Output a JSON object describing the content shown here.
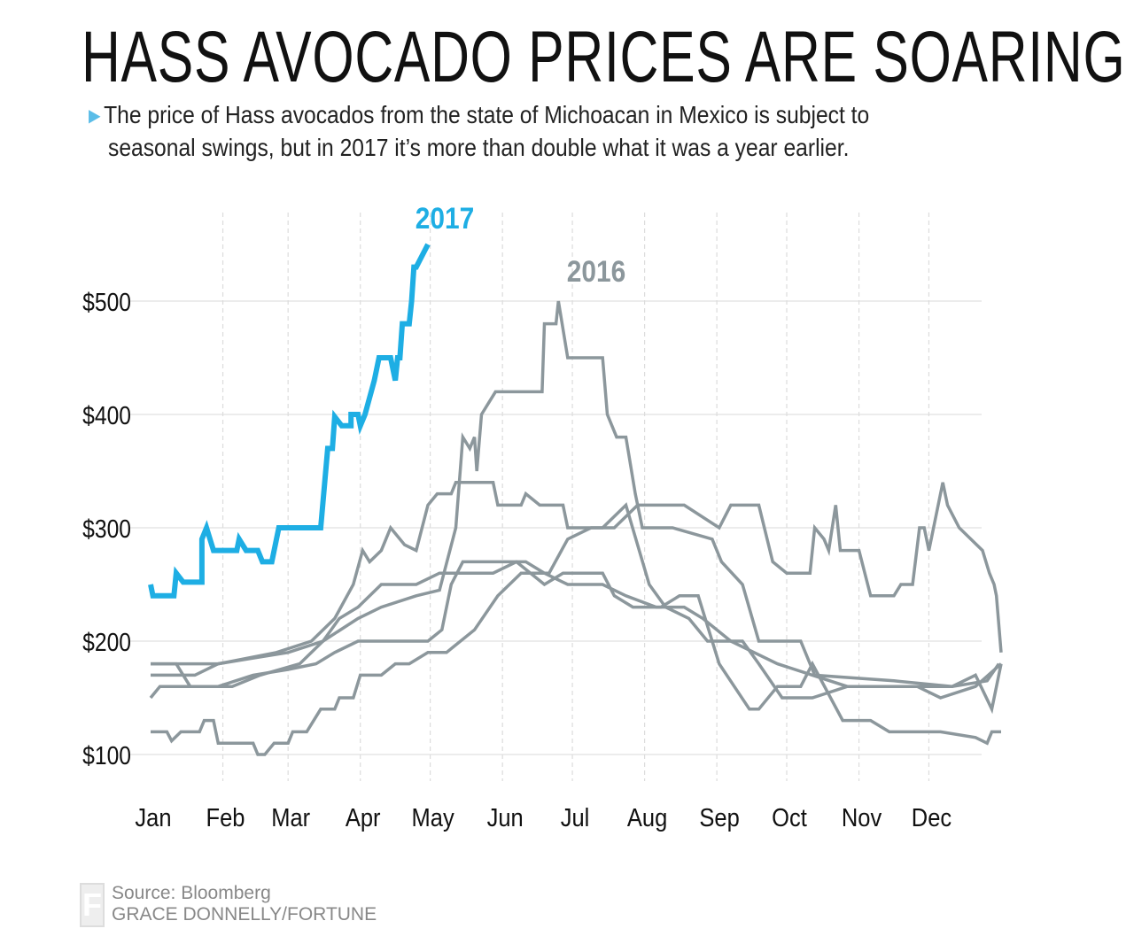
{
  "title": "HASS AVOCADO PRICES ARE SOARING",
  "subtitle": {
    "line1": "The price of Hass avocados from the state of Michoacan in Mexico is subject to",
    "line2": "seasonal swings, but in 2017 it’s more than double what it was a year earlier.",
    "bullet_icon": "triangle-right-icon"
  },
  "footer": {
    "source": "Source: Bloomberg",
    "credit": "GRACE DONNELLY/FORTUNE",
    "logo": "F"
  },
  "colors": {
    "highlight": "#1eaee4",
    "other_years": "#8c979c",
    "grid": "#e6e6e6"
  },
  "chart_data": {
    "type": "line",
    "title": "HASS AVOCADO PRICES ARE SOARING",
    "xlabel": "",
    "ylabel": "",
    "x_ticks": [
      "Jan",
      "Feb",
      "Mar",
      "Apr",
      "May",
      "Jun",
      "Jul",
      "Aug",
      "Sep",
      "Oct",
      "Nov",
      "Dec"
    ],
    "y_ticks": [
      "$100",
      "$200",
      "$300",
      "$400",
      "$500"
    ],
    "y_tick_values": [
      100,
      200,
      300,
      400,
      500
    ],
    "xlim": [
      1,
      366
    ],
    "ylim": [
      95,
      560
    ],
    "grid": true,
    "series": [
      {
        "name": "2017",
        "highlight": true,
        "points": [
          [
            1,
            250
          ],
          [
            2,
            240
          ],
          [
            11,
            240
          ],
          [
            12,
            260
          ],
          [
            15,
            252
          ],
          [
            23,
            252
          ],
          [
            23,
            290
          ],
          [
            25,
            300
          ],
          [
            28,
            280
          ],
          [
            38,
            280
          ],
          [
            39,
            290
          ],
          [
            42,
            280
          ],
          [
            47,
            280
          ],
          [
            49,
            270
          ],
          [
            53,
            270
          ],
          [
            56,
            300
          ],
          [
            74,
            300
          ],
          [
            77,
            370
          ],
          [
            79,
            370
          ],
          [
            80,
            398
          ],
          [
            83,
            390
          ],
          [
            87,
            390
          ],
          [
            87,
            400
          ],
          [
            90,
            400
          ],
          [
            91,
            390
          ],
          [
            93,
            400
          ],
          [
            97,
            430
          ],
          [
            99,
            450
          ],
          [
            104,
            450
          ],
          [
            106,
            430
          ],
          [
            107,
            450
          ],
          [
            108,
            450
          ],
          [
            109,
            480
          ],
          [
            112,
            480
          ],
          [
            113,
            500
          ],
          [
            114,
            530
          ],
          [
            115,
            530
          ],
          [
            120,
            550
          ]
        ]
      },
      {
        "name": "2016",
        "highlight": false,
        "points": [
          [
            1,
            180
          ],
          [
            30,
            180
          ],
          [
            45,
            185
          ],
          [
            60,
            190
          ],
          [
            75,
            200
          ],
          [
            90,
            220
          ],
          [
            100,
            230
          ],
          [
            115,
            240
          ],
          [
            125,
            245
          ],
          [
            132,
            300
          ],
          [
            135,
            380
          ],
          [
            138,
            370
          ],
          [
            140,
            380
          ],
          [
            141,
            350
          ],
          [
            143,
            400
          ],
          [
            146,
            410
          ],
          [
            149,
            420
          ],
          [
            169,
            420
          ],
          [
            170,
            480
          ],
          [
            175,
            480
          ],
          [
            176,
            500
          ],
          [
            180,
            450
          ],
          [
            195,
            450
          ],
          [
            197,
            400
          ],
          [
            201,
            380
          ],
          [
            205,
            380
          ],
          [
            209,
            330
          ],
          [
            212,
            300
          ],
          [
            225,
            300
          ],
          [
            242,
            290
          ],
          [
            246,
            270
          ],
          [
            255,
            250
          ],
          [
            262,
            200
          ],
          [
            280,
            200
          ],
          [
            286,
            170
          ],
          [
            320,
            165
          ],
          [
            345,
            160
          ],
          [
            360,
            165
          ],
          [
            365,
            180
          ]
        ]
      },
      {
        "highlight": false,
        "points": [
          [
            1,
            120
          ],
          [
            8,
            120
          ],
          [
            10,
            112
          ],
          [
            14,
            120
          ],
          [
            22,
            120
          ],
          [
            24,
            130
          ],
          [
            28,
            130
          ],
          [
            30,
            110
          ],
          [
            45,
            110
          ],
          [
            47,
            100
          ],
          [
            50,
            100
          ],
          [
            54,
            110
          ],
          [
            60,
            110
          ],
          [
            62,
            120
          ],
          [
            68,
            120
          ],
          [
            74,
            140
          ],
          [
            80,
            140
          ],
          [
            82,
            150
          ],
          [
            88,
            150
          ],
          [
            91,
            170
          ],
          [
            100,
            170
          ],
          [
            106,
            180
          ],
          [
            112,
            180
          ],
          [
            120,
            190
          ],
          [
            128,
            190
          ],
          [
            140,
            210
          ],
          [
            150,
            240
          ],
          [
            160,
            260
          ],
          [
            172,
            260
          ],
          [
            180,
            290
          ],
          [
            190,
            300
          ],
          [
            200,
            300
          ],
          [
            210,
            320
          ],
          [
            230,
            320
          ],
          [
            245,
            300
          ],
          [
            250,
            320
          ],
          [
            262,
            320
          ],
          [
            268,
            270
          ],
          [
            274,
            260
          ],
          [
            284,
            260
          ],
          [
            286,
            300
          ],
          [
            290,
            290
          ],
          [
            292,
            280
          ],
          [
            295,
            320
          ],
          [
            297,
            280
          ],
          [
            305,
            280
          ],
          [
            310,
            240
          ],
          [
            320,
            240
          ],
          [
            323,
            250
          ],
          [
            328,
            250
          ],
          [
            331,
            300
          ],
          [
            333,
            300
          ],
          [
            335,
            280
          ],
          [
            341,
            340
          ],
          [
            343,
            320
          ],
          [
            348,
            300
          ],
          [
            353,
            290
          ],
          [
            358,
            280
          ],
          [
            361,
            260
          ],
          [
            363,
            250
          ],
          [
            364,
            240
          ],
          [
            366,
            190
          ]
        ]
      },
      {
        "highlight": false,
        "points": [
          [
            1,
            170
          ],
          [
            20,
            170
          ],
          [
            30,
            180
          ],
          [
            55,
            190
          ],
          [
            70,
            200
          ],
          [
            80,
            220
          ],
          [
            88,
            250
          ],
          [
            92,
            280
          ],
          [
            95,
            270
          ],
          [
            100,
            280
          ],
          [
            104,
            300
          ],
          [
            110,
            285
          ],
          [
            115,
            280
          ],
          [
            120,
            320
          ],
          [
            124,
            330
          ],
          [
            130,
            330
          ],
          [
            132,
            340
          ],
          [
            148,
            340
          ],
          [
            150,
            320
          ],
          [
            160,
            320
          ],
          [
            162,
            330
          ],
          [
            168,
            320
          ],
          [
            178,
            320
          ],
          [
            180,
            300
          ],
          [
            195,
            300
          ],
          [
            205,
            320
          ],
          [
            215,
            250
          ],
          [
            222,
            230
          ],
          [
            232,
            220
          ],
          [
            240,
            200
          ],
          [
            255,
            200
          ],
          [
            262,
            180
          ],
          [
            272,
            150
          ],
          [
            285,
            150
          ],
          [
            300,
            160
          ],
          [
            330,
            160
          ],
          [
            340,
            150
          ],
          [
            355,
            160
          ],
          [
            366,
            180
          ]
        ]
      },
      {
        "highlight": false,
        "points": [
          [
            1,
            150
          ],
          [
            5,
            160
          ],
          [
            30,
            160
          ],
          [
            45,
            170
          ],
          [
            60,
            175
          ],
          [
            72,
            180
          ],
          [
            80,
            190
          ],
          [
            90,
            200
          ],
          [
            110,
            200
          ],
          [
            120,
            200
          ],
          [
            126,
            210
          ],
          [
            130,
            250
          ],
          [
            135,
            270
          ],
          [
            150,
            270
          ],
          [
            162,
            270
          ],
          [
            170,
            260
          ],
          [
            180,
            250
          ],
          [
            195,
            250
          ],
          [
            205,
            240
          ],
          [
            218,
            230
          ],
          [
            230,
            230
          ],
          [
            238,
            220
          ],
          [
            250,
            200
          ],
          [
            260,
            190
          ],
          [
            270,
            180
          ],
          [
            285,
            170
          ],
          [
            300,
            160
          ],
          [
            330,
            160
          ],
          [
            345,
            160
          ],
          [
            355,
            170
          ],
          [
            362,
            140
          ],
          [
            366,
            180
          ]
        ]
      },
      {
        "highlight": false,
        "points": [
          [
            1,
            180
          ],
          [
            12,
            180
          ],
          [
            18,
            160
          ],
          [
            36,
            160
          ],
          [
            48,
            170
          ],
          [
            65,
            180
          ],
          [
            75,
            200
          ],
          [
            82,
            220
          ],
          [
            90,
            230
          ],
          [
            100,
            250
          ],
          [
            115,
            250
          ],
          [
            125,
            260
          ],
          [
            148,
            260
          ],
          [
            158,
            270
          ],
          [
            170,
            250
          ],
          [
            178,
            260
          ],
          [
            195,
            260
          ],
          [
            200,
            240
          ],
          [
            208,
            230
          ],
          [
            220,
            230
          ],
          [
            228,
            240
          ],
          [
            236,
            240
          ],
          [
            245,
            180
          ],
          [
            258,
            140
          ],
          [
            262,
            140
          ],
          [
            270,
            160
          ],
          [
            280,
            160
          ],
          [
            285,
            180
          ],
          [
            298,
            130
          ],
          [
            310,
            130
          ],
          [
            318,
            120
          ],
          [
            340,
            120
          ],
          [
            355,
            115
          ],
          [
            360,
            110
          ],
          [
            362,
            120
          ],
          [
            366,
            120
          ]
        ]
      }
    ],
    "annotations": [
      {
        "text": "2017",
        "series": "2017"
      },
      {
        "text": "2016",
        "series": "2016"
      }
    ]
  }
}
